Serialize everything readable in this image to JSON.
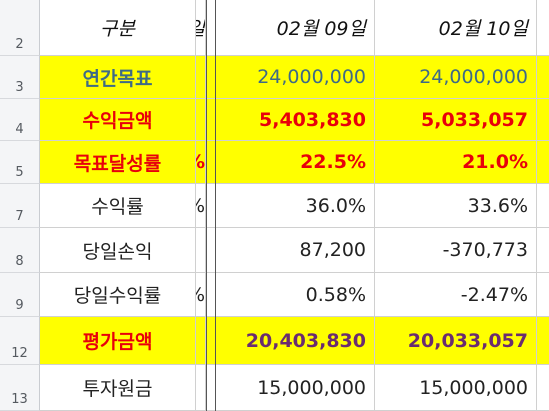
{
  "row_numbers": [
    "2",
    "3",
    "4",
    "5",
    "7",
    "8",
    "9",
    "12",
    "13"
  ],
  "header": {
    "label": "구분",
    "partial": "일",
    "dates": [
      "02월 09일",
      "02월 10일"
    ]
  },
  "rows": [
    {
      "label": "연간목표",
      "partial": "",
      "values": [
        "24,000,000",
        "24,000,000"
      ]
    },
    {
      "label": "수익금액",
      "partial": "",
      "values": [
        "5,403,830",
        "5,033,057"
      ]
    },
    {
      "label": "목표달성률",
      "partial": "%",
      "values": [
        "22.5%",
        "21.0%"
      ]
    },
    {
      "label": "수익률",
      "partial": "%",
      "values": [
        "36.0%",
        "33.6%"
      ]
    },
    {
      "label": "당일손익",
      "partial": "",
      "values": [
        "87,200",
        "-370,773"
      ]
    },
    {
      "label": "당일수익률",
      "partial": "%",
      "values": [
        "0.58%",
        "-2.47%"
      ]
    },
    {
      "label": "평가금액",
      "partial": "",
      "values": [
        "20,403,830",
        "20,033,057"
      ]
    },
    {
      "label": "투자원금",
      "partial": "",
      "values": [
        "15,000,000",
        "15,000,000"
      ]
    }
  ],
  "colors": {
    "highlight": "#ffff00",
    "blue_text": "#3d6a87",
    "red_text": "#e8000b",
    "purple_text": "#6a2c70"
  }
}
